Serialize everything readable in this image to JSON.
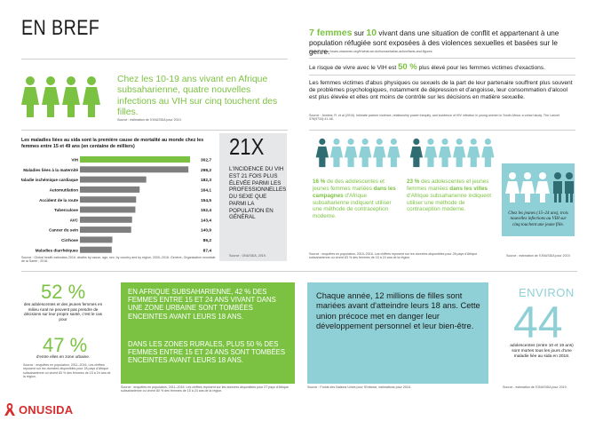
{
  "title": "EN BREF",
  "colors": {
    "green": "#7cc242",
    "teal": "#8fd0d6",
    "gray_box": "#e6e7e8",
    "logo_red": "#d42e2e",
    "bar": "#7f7f7f"
  },
  "girls_1019": {
    "text": "Chez les 10-19 ans vivant en Afrique subsaharienne, quatre nouvelles infections au VIH sur cinq touchent des filles.",
    "source": "Source : estimation de l'ONUSIDA pour 2019."
  },
  "chart_data": {
    "type": "bar",
    "orientation": "horizontal",
    "title": "Les maladies liées au sida sont la première cause de mortalité au monde chez les femmes entre 15 et 49 ans (en centaine de milliers)",
    "categories": [
      "VIH",
      "Maladies liées à la maternité",
      "Maladie ischémique cardiaque",
      "Automutilation",
      "Accident de la route",
      "Tuberculose",
      "AVC",
      "Cancer du sein",
      "Cirrhose",
      "Maladies diarrhéiques"
    ],
    "values": [
      302.7,
      298.2,
      182.3,
      164.1,
      154.5,
      152.4,
      143.4,
      140.9,
      89.2,
      87.4
    ],
    "value_labels": [
      "302,7",
      "298,2",
      "182,3",
      "164,1",
      "154,5",
      "152,4",
      "143,4",
      "140,9",
      "89,2",
      "87,4"
    ],
    "source": "Source : Global health estimates 2016: deaths by cause, age, sex, by country and by region, 2000–2016. Genève, Organisation mondiale de la Santé ; 2018."
  },
  "stat_21x": {
    "big": "21X",
    "text": "L'INCIDENCE DU VIH EST 21 FOIS PLUS ÉLEVÉE PARMI LES PROFESSIONNELLES DU SEXE QUE PARMI LA POPULATION EN GÉNÉRAL",
    "source": "Source : ONUSIDA, 2019."
  },
  "refugees": {
    "n1": "7 femmes",
    "mid": " sur ",
    "n2": "10",
    "text": " vivant dans une situation de conflit et appartenant à une population réfugiée sont exposées à des violences sexuelles et basées sur le genre.",
    "source": "Source : https://www.unwomen.org/fr/what-we-do/humanitarian-action/facts-and-figures"
  },
  "risk": {
    "before": "Le risque de vivre avec le VIH est ",
    "pct": "50 %",
    "after": " plus élevé pour les femmes victimes d'exactions."
  },
  "abuse": {
    "text": "Les femmes victimes d'abus physiques ou sexuels de la part de leur partenaire souffrent plus souvent de problèmes psychologiques, notamment de dépression et d'angoisse, leur consommation d'alcool est plus élevée et elles ont moins de contrôle sur les décisions en matière sexuelle.",
    "source": "Source : Jewkes, R. et al (2010). Intimate partner violence, relationship power inequity, and incidence of HIV infection in young women in South Africa: a cohort study. The Lancet 376(9734):41-48."
  },
  "contraception": {
    "left_pct": "16 %",
    "left_text_a": " de des adolescentes et jeunes femmes mariées ",
    "left_bold": "dans les campagnes",
    "left_text_b": " d'Afrique subsaharienne indiquent utiliser une méthode de contraception moderne.",
    "right_pct": "23 %",
    "right_text_a": " des adolescentes et jeunes femmes mariées ",
    "right_bold": "dans les villes",
    "right_text_b": " d'Afrique subsaharienne indiquent utiliser une méthode de contraception moderne.",
    "source": "Source : enquêtes en population, 2015–2016. Les chiffres reposent sur les données disponibles pour 28 pays d'Afrique subsaharienne où vivent 83 % des femmes de 15 à 24 ans de la région."
  },
  "young_infections": {
    "text": "Chez les jeunes (15–24 ans), trois nouvelles infections au VIH sur cinq touchent une jeune fille.",
    "source": "Source : estimation de l'ONUSIDA pour 2019."
  },
  "decisions": {
    "pct52": "52 %",
    "text52": "des adolescentes et des jeunes femmes en milieu rural ne peuvent pas prendre de décisions sur leur propre santé, c'est le cas pour",
    "pct47": "47 %",
    "text47": "d'entre elles en zone urbaine.",
    "source": "Source : enquêtes en population, 2011–2016. Les chiffres reposent sur les données disponibles pour 28 pays d'Afrique subsaharienne où vivent 83 % des femmes de 15 à 24 ans de la région."
  },
  "pregnancy": {
    "p1": "EN AFRIQUE SUBSAHARIENNE, 42 % DES FEMMES ENTRE 15 ET 24 ANS VIVANT DANS UNE ZONE URBAINE SONT TOMBÉES ENCEINTES AVANT LEURS 18 ANS.",
    "p2": "DANS LES ZONES RURALES, PLUS 50 % DES FEMMES ENTRE 15 ET 24 ANS SONT TOMBÉES ENCEINTES AVANT LEURS 18 ANS.",
    "source": "Source : enquêtes en population, 2011–2016. Les chiffres reposent sur les données disponibles pour 27 pays d'Afrique subsaharienne où vivent 80 % des femmes de 15 à 24 ans de la région."
  },
  "marriage": {
    "text": "Chaque année, 12 millions de filles sont mariées avant d'atteindre leurs 18 ans. Cette union précoce met en danger leur développement personnel et leur bien-être.",
    "source": "Source : Fonds des Nations Unies pour l'Enfance, estimations pour 2018."
  },
  "environ44": {
    "environ": "ENVIRON",
    "big": "44",
    "text": "adolescentes (entre 10 et 19 ans) sont mortes tous les jours d'une maladie liée au sida en 2018.",
    "source": "Source : estimation de l'ONUSIDA pour 2019."
  },
  "logo": {
    "text": "ONUSIDA",
    "icon": "ribbon-icon"
  }
}
